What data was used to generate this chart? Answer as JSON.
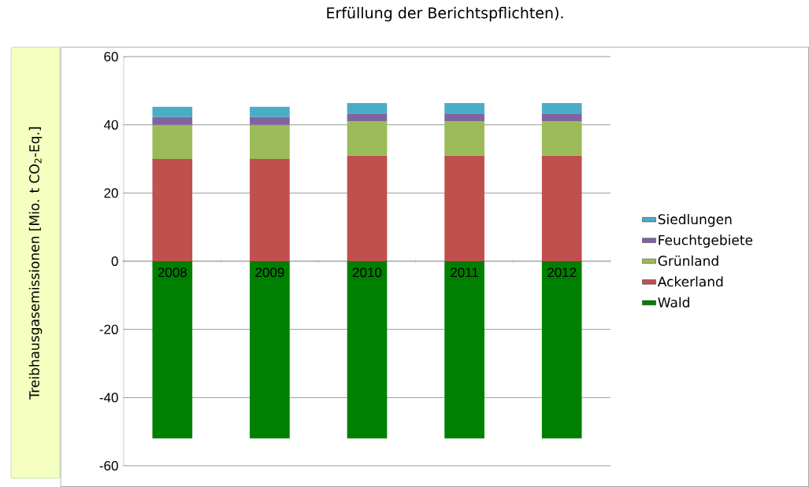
{
  "chart_data": {
    "type": "bar",
    "stacked": true,
    "title": "Erfüllung der Berichtspflichten).",
    "ylabel": "Treibhausgasemissionen [Mio. t CO$_{2}$-Eq.]",
    "categories": [
      "2008",
      "2009",
      "2010",
      "2011",
      "2012"
    ],
    "series": [
      {
        "name": "Wald",
        "color": "#008000",
        "values": [
          -52,
          -52,
          -52,
          -52,
          -52
        ]
      },
      {
        "name": "Ackerland",
        "color": "#c0504d",
        "values": [
          30,
          30,
          31,
          31,
          31
        ]
      },
      {
        "name": "Grünland",
        "color": "#9bbb59",
        "values": [
          10,
          10,
          10,
          10,
          10
        ]
      },
      {
        "name": "Feuchtgebiete",
        "color": "#8064a2",
        "values": [
          2.3,
          2.3,
          2.3,
          2.3,
          2.3
        ]
      },
      {
        "name": "Siedlungen",
        "color": "#4bacc6",
        "values": [
          3,
          3,
          3.1,
          3.1,
          3.1
        ]
      }
    ],
    "ylim": [
      -60,
      60
    ],
    "yticks": [
      -60,
      -40,
      -20,
      0,
      20,
      40,
      60
    ],
    "grid": "y",
    "legend": "right"
  }
}
